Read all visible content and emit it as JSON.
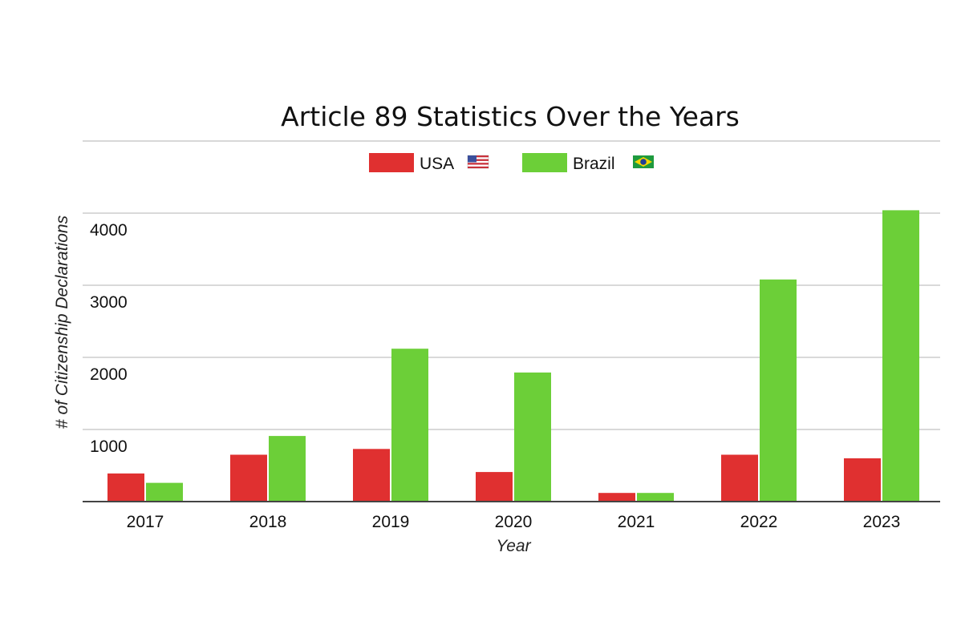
{
  "chart_data": {
    "type": "bar",
    "title": "Article 89 Statistics Over the Years",
    "xlabel": "Year",
    "ylabel": "# of Citizenship Declarations",
    "categories": [
      "2017",
      "2018",
      "2019",
      "2020",
      "2021",
      "2022",
      "2023"
    ],
    "series": [
      {
        "name": "USA",
        "flag": "us-flag-icon",
        "color": "#e03030",
        "values": [
          390,
          650,
          730,
          410,
          120,
          650,
          600
        ]
      },
      {
        "name": "Brazil",
        "flag": "brazil-flag-icon",
        "color": "#6ccf38",
        "values": [
          260,
          910,
          2120,
          1790,
          120,
          3080,
          4040
        ]
      }
    ],
    "ylim": [
      0,
      4000
    ],
    "yticks": [
      "1000",
      "2000",
      "3000",
      "4000"
    ],
    "grid": true,
    "legend_position": "top-center"
  }
}
